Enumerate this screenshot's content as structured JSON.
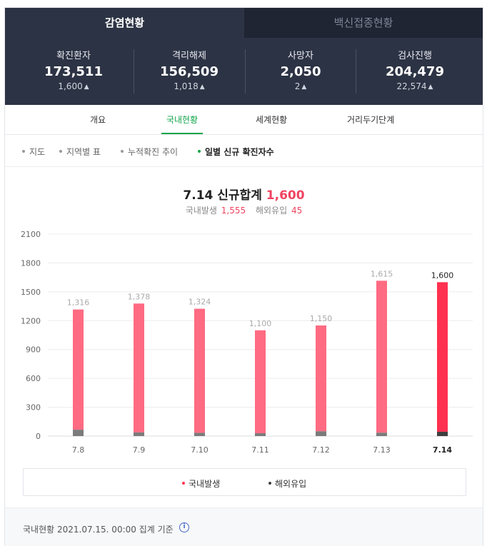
{
  "tabs": {
    "active": "감염현황",
    "inactive": "백신접종현황"
  },
  "stats": [
    {
      "label": "확진환자",
      "value": "173,511",
      "change": "1,600"
    },
    {
      "label": "격리해제",
      "value": "156,509",
      "change": "1,018"
    },
    {
      "label": "사망자",
      "value": "2,050",
      "change": "2"
    },
    {
      "label": "검사진행",
      "value": "204,479",
      "change": "22,574"
    }
  ],
  "subtabs": [
    "개요",
    "국내현황",
    "세계현황",
    "거리두기단계"
  ],
  "active_subtab": "국내현황",
  "menu": [
    "지도",
    "지역별 표",
    "누적확진 추이",
    "일별 신규 확진자수"
  ],
  "active_menu": "일별 신규 확진자수",
  "chart_title": {
    "prefix": "7.14 신규합계",
    "total": "1,600"
  },
  "chart_sub": {
    "domestic_label": "국내발생",
    "domestic_value": "1,555",
    "import_label": "해외유입",
    "import_value": "45"
  },
  "legend": {
    "domestic": "국내발생",
    "imported": "해외유입"
  },
  "footer": "국내현황 2021.07.15. 00:00 집계 기준",
  "colors": {
    "domestic": "#ff6b82",
    "domestic_today": "#ff3150",
    "imported": "#7b7b7b",
    "imported_today": "#3f3f3f",
    "accent": "#13a54a",
    "header": "#2c3344"
  },
  "chart_data": {
    "type": "bar",
    "stacked": true,
    "categories": [
      "7.8",
      "7.9",
      "7.10",
      "7.11",
      "7.12",
      "7.13",
      "7.14"
    ],
    "totals": [
      1316,
      1378,
      1324,
      1100,
      1150,
      1615,
      1600
    ],
    "total_labels": [
      "1,316",
      "1,378",
      "1,324",
      "1,100",
      "1,150",
      "1,615",
      "1,600"
    ],
    "series": [
      {
        "name": "국내발생",
        "values": [
          1250,
          1340,
          1290,
          1070,
          1100,
          1580,
          1555
        ]
      },
      {
        "name": "해외유입",
        "values": [
          66,
          38,
          34,
          30,
          50,
          35,
          45
        ]
      }
    ],
    "yticks": [
      "2100",
      "1800",
      "1500",
      "1200",
      "900",
      "600",
      "300",
      "0"
    ],
    "ylim": [
      0,
      2100
    ],
    "grid": true,
    "highlight_index": 6
  }
}
